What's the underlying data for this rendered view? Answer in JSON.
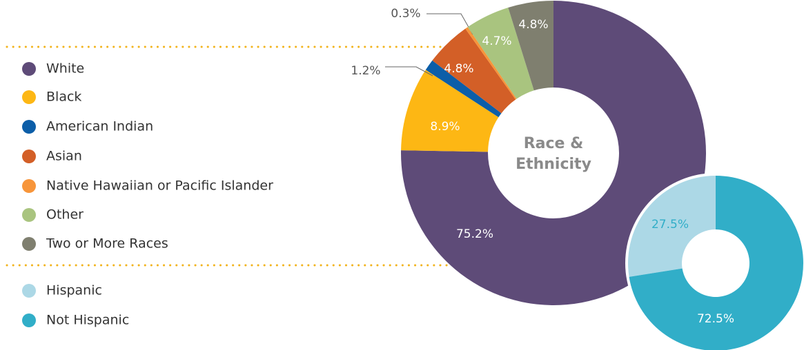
{
  "chart_data": [
    {
      "type": "donut",
      "title": "Race & Ethnicity",
      "categories": [
        "White",
        "Black",
        "American Indian",
        "Asian",
        "Native Hawaiian or Pacific Islander",
        "Other",
        "Two or More Races"
      ],
      "values": [
        75.2,
        8.9,
        1.2,
        4.8,
        0.3,
        4.7,
        4.8
      ],
      "value_labels": [
        "75.2%",
        "8.9%",
        "1.2%",
        "4.8%",
        "0.3%",
        "4.7%",
        "4.8%"
      ],
      "colors": [
        "#5e4b78",
        "#fdb714",
        "#0c5ea8",
        "#d35f27",
        "#f7953a",
        "#a9c47f",
        "#7f7f6f"
      ]
    },
    {
      "type": "donut",
      "categories": [
        "Hispanic",
        "Not Hispanic"
      ],
      "values": [
        27.5,
        72.5
      ],
      "value_labels": [
        "27.5%",
        "72.5%"
      ],
      "colors": [
        "#acd8e6",
        "#31aec8"
      ]
    }
  ]
}
